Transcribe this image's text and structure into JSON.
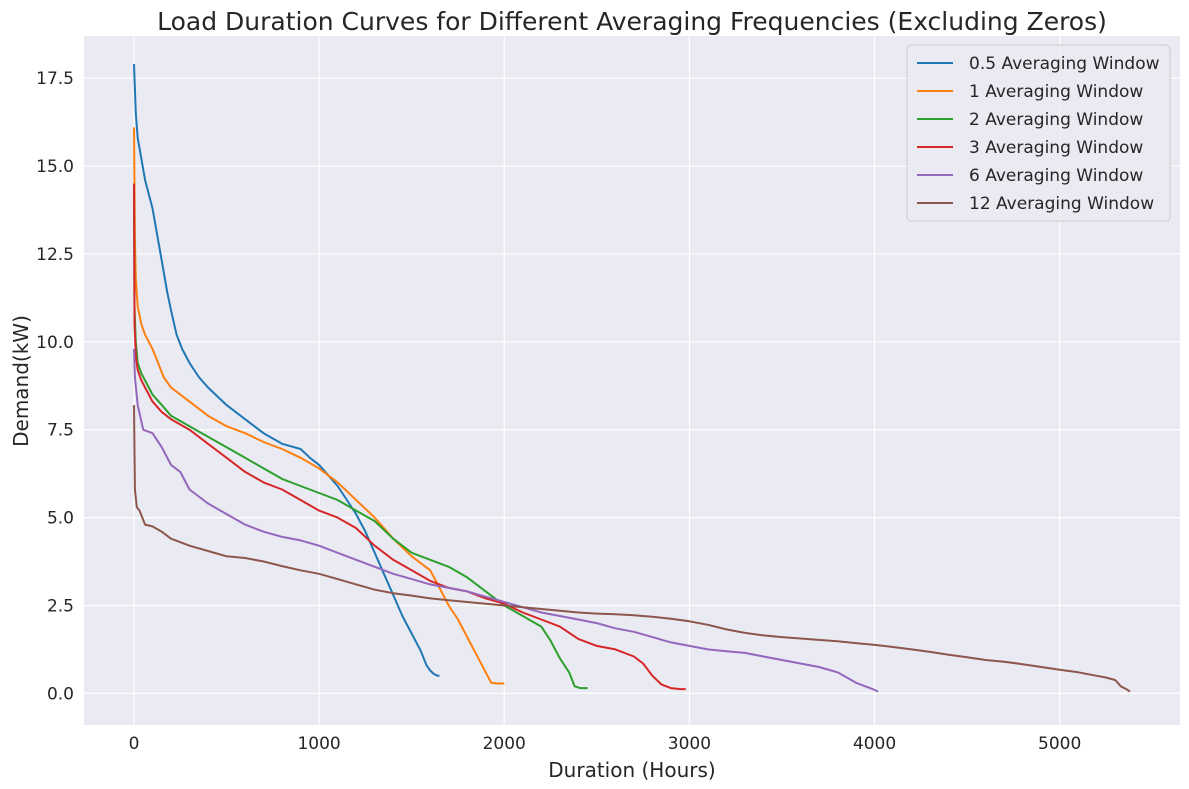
{
  "chart_data": {
    "type": "line",
    "title": "Load Duration Curves for Different Averaging Frequencies (Excluding Zeros)",
    "xlabel": "Duration (Hours)",
    "ylabel": "Demand(kW)",
    "xlim": [
      -270,
      5650
    ],
    "ylim": [
      -0.9,
      18.7
    ],
    "xticks": [
      0,
      1000,
      2000,
      3000,
      4000,
      5000
    ],
    "yticks": [
      0.0,
      2.5,
      5.0,
      7.5,
      10.0,
      12.5,
      15.0,
      17.5
    ],
    "grid": true,
    "background": "#eaeaf2",
    "grid_color": "#ffffff",
    "legend_position": "top-right",
    "series": [
      {
        "name": "0.5 Averaging Window",
        "color": "#1f77b4",
        "x": [
          0,
          10,
          20,
          40,
          60,
          80,
          100,
          120,
          150,
          180,
          200,
          230,
          260,
          300,
          350,
          400,
          500,
          600,
          700,
          800,
          900,
          950,
          1000,
          1050,
          1100,
          1150,
          1200,
          1250,
          1300,
          1350,
          1400,
          1450,
          1500,
          1550,
          1580,
          1600,
          1620,
          1640,
          1650
        ],
        "y": [
          17.9,
          16.5,
          15.8,
          15.2,
          14.6,
          14.2,
          13.8,
          13.2,
          12.3,
          11.4,
          10.9,
          10.2,
          9.8,
          9.4,
          9.0,
          8.7,
          8.2,
          7.8,
          7.4,
          7.1,
          6.95,
          6.7,
          6.5,
          6.2,
          5.9,
          5.5,
          5.1,
          4.6,
          4.0,
          3.4,
          2.8,
          2.2,
          1.7,
          1.2,
          0.8,
          0.65,
          0.55,
          0.5,
          0.5
        ]
      },
      {
        "name": "1 Averaging Window",
        "color": "#ff7f0e",
        "x": [
          0,
          5,
          10,
          20,
          40,
          60,
          80,
          100,
          130,
          160,
          200,
          250,
          300,
          400,
          500,
          600,
          700,
          800,
          900,
          1000,
          1100,
          1200,
          1300,
          1400,
          1500,
          1600,
          1650,
          1700,
          1750,
          1800,
          1850,
          1900,
          1930,
          1960,
          2000
        ],
        "y": [
          16.1,
          13.0,
          11.8,
          11.0,
          10.5,
          10.2,
          10.0,
          9.8,
          9.4,
          9.0,
          8.7,
          8.5,
          8.3,
          7.9,
          7.6,
          7.4,
          7.15,
          6.95,
          6.7,
          6.4,
          6.0,
          5.5,
          5.0,
          4.4,
          3.9,
          3.5,
          3.0,
          2.5,
          2.1,
          1.6,
          1.1,
          0.6,
          0.3,
          0.28,
          0.28
        ]
      },
      {
        "name": "2 Averaging Window",
        "color": "#2ca02c",
        "x": [
          0,
          3,
          10,
          20,
          40,
          60,
          80,
          100,
          150,
          200,
          300,
          400,
          500,
          600,
          700,
          800,
          900,
          1000,
          1100,
          1200,
          1300,
          1400,
          1500,
          1600,
          1700,
          1800,
          1900,
          2000,
          2100,
          2200,
          2250,
          2300,
          2350,
          2380,
          2410,
          2450
        ],
        "y": [
          14.5,
          11.0,
          10.0,
          9.4,
          9.1,
          8.9,
          8.7,
          8.5,
          8.2,
          7.9,
          7.6,
          7.3,
          7.0,
          6.7,
          6.4,
          6.1,
          5.9,
          5.7,
          5.5,
          5.2,
          4.9,
          4.4,
          4.0,
          3.8,
          3.6,
          3.3,
          2.9,
          2.5,
          2.2,
          1.9,
          1.5,
          1.0,
          0.6,
          0.2,
          0.15,
          0.15
        ]
      },
      {
        "name": "3 Averaging Window",
        "color": "#d62728",
        "x": [
          0,
          3,
          10,
          20,
          40,
          60,
          80,
          100,
          150,
          200,
          300,
          400,
          500,
          600,
          700,
          800,
          900,
          1000,
          1100,
          1200,
          1300,
          1400,
          1500,
          1600,
          1700,
          1800,
          1900,
          2000,
          2100,
          2200,
          2300,
          2400,
          2500,
          2600,
          2700,
          2750,
          2800,
          2850,
          2900,
          2950,
          2980
        ],
        "y": [
          14.5,
          10.5,
          9.6,
          9.2,
          8.9,
          8.7,
          8.5,
          8.3,
          8.0,
          7.8,
          7.5,
          7.1,
          6.7,
          6.3,
          6.0,
          5.8,
          5.5,
          5.2,
          5.0,
          4.7,
          4.2,
          3.8,
          3.5,
          3.2,
          3.0,
          2.9,
          2.7,
          2.55,
          2.3,
          2.1,
          1.9,
          1.55,
          1.35,
          1.25,
          1.05,
          0.85,
          0.5,
          0.25,
          0.15,
          0.12,
          0.12
        ]
      },
      {
        "name": "6 Averaging Window",
        "color": "#9467bd",
        "x": [
          0,
          5,
          20,
          50,
          100,
          150,
          200,
          250,
          300,
          350,
          400,
          500,
          600,
          700,
          800,
          900,
          1000,
          1100,
          1200,
          1300,
          1400,
          1500,
          1600,
          1700,
          1800,
          1900,
          2000,
          2100,
          2200,
          2300,
          2400,
          2500,
          2600,
          2700,
          2800,
          2900,
          3000,
          3100,
          3200,
          3300,
          3400,
          3500,
          3600,
          3700,
          3800,
          3850,
          3900,
          3950,
          3990,
          4020
        ],
        "y": [
          9.8,
          9.0,
          8.2,
          7.5,
          7.4,
          7.0,
          6.5,
          6.3,
          5.8,
          5.6,
          5.4,
          5.1,
          4.8,
          4.6,
          4.45,
          4.35,
          4.2,
          4.0,
          3.8,
          3.6,
          3.4,
          3.25,
          3.1,
          3.0,
          2.9,
          2.75,
          2.6,
          2.45,
          2.3,
          2.2,
          2.1,
          2.0,
          1.85,
          1.75,
          1.6,
          1.45,
          1.35,
          1.25,
          1.2,
          1.15,
          1.05,
          0.95,
          0.85,
          0.75,
          0.6,
          0.45,
          0.3,
          0.2,
          0.12,
          0.05
        ]
      },
      {
        "name": "12 Averaging Window",
        "color": "#8c564b",
        "x": [
          0,
          5,
          15,
          30,
          60,
          100,
          150,
          200,
          250,
          300,
          400,
          500,
          600,
          700,
          800,
          900,
          1000,
          1100,
          1200,
          1300,
          1400,
          1500,
          1600,
          1700,
          1800,
          1900,
          2000,
          2100,
          2200,
          2300,
          2400,
          2500,
          2600,
          2700,
          2800,
          2900,
          3000,
          3100,
          3200,
          3300,
          3400,
          3500,
          3600,
          3700,
          3800,
          3900,
          4000,
          4100,
          4200,
          4300,
          4400,
          4500,
          4600,
          4700,
          4800,
          4900,
          5000,
          5100,
          5200,
          5250,
          5300,
          5330,
          5360,
          5380
        ],
        "y": [
          8.2,
          5.8,
          5.3,
          5.2,
          4.8,
          4.75,
          4.6,
          4.4,
          4.3,
          4.2,
          4.05,
          3.9,
          3.85,
          3.75,
          3.62,
          3.5,
          3.4,
          3.25,
          3.1,
          2.95,
          2.85,
          2.78,
          2.7,
          2.65,
          2.6,
          2.55,
          2.5,
          2.45,
          2.4,
          2.35,
          2.3,
          2.27,
          2.25,
          2.22,
          2.18,
          2.12,
          2.05,
          1.95,
          1.82,
          1.72,
          1.65,
          1.6,
          1.56,
          1.52,
          1.48,
          1.43,
          1.38,
          1.32,
          1.25,
          1.18,
          1.1,
          1.03,
          0.95,
          0.9,
          0.83,
          0.75,
          0.67,
          0.6,
          0.5,
          0.45,
          0.38,
          0.2,
          0.12,
          0.05
        ]
      }
    ]
  }
}
